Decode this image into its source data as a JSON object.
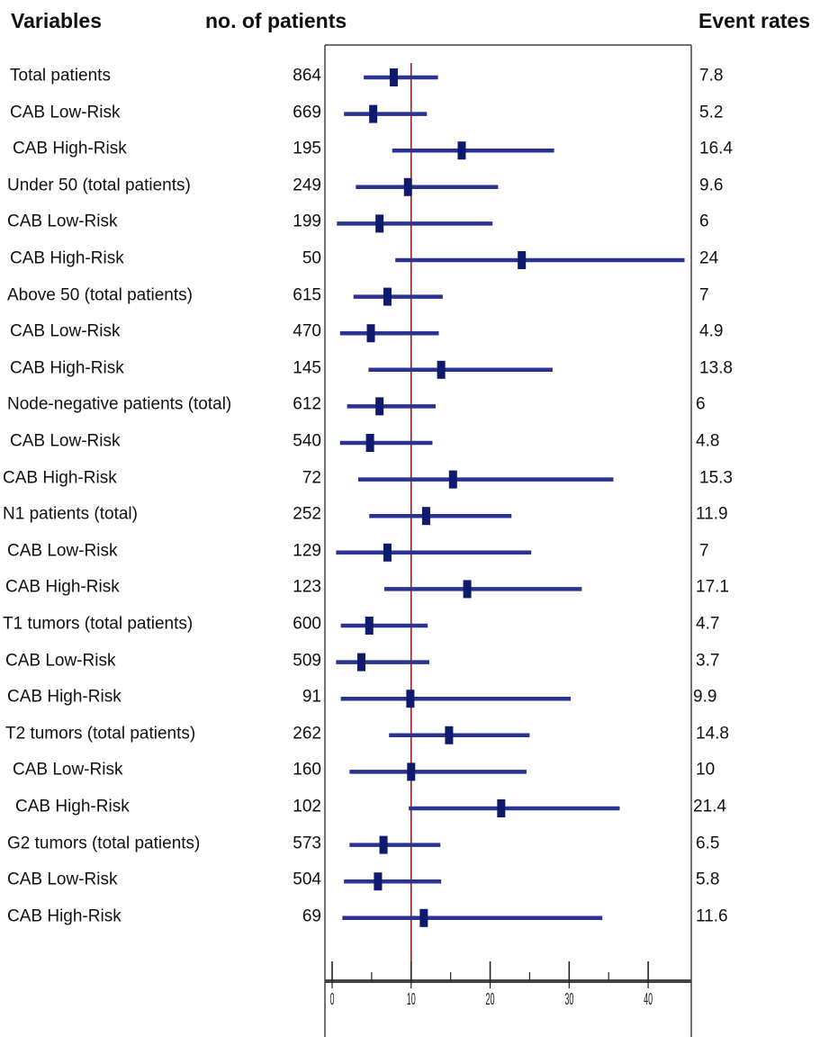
{
  "headers": {
    "variables": "Variables",
    "patients": "no. of patients",
    "rates": "Event rates"
  },
  "chart_data": {
    "type": "forest",
    "title": "",
    "xlabel": "",
    "ylabel": "",
    "reference_line": 10,
    "xlim": [
      0,
      45
    ],
    "x_ticks": [
      0,
      10,
      20,
      30,
      40
    ],
    "minor_ticks": [
      5,
      15,
      25,
      35
    ],
    "colors": {
      "interval": "#2a3392",
      "marker": "#0d1a6e",
      "reference": "#8b1a1a",
      "axis": "#444444"
    },
    "rows": [
      {
        "label": "Total patients",
        "n": "864",
        "rate_text": "7.8",
        "estimate": 7.8,
        "lower": 4.0,
        "upper": 13.4
      },
      {
        "label": "CAB Low-Risk",
        "n": "669",
        "rate_text": "5.2",
        "estimate": 5.2,
        "lower": 1.5,
        "upper": 12.0
      },
      {
        "label": "CAB High-Risk",
        "n": "195",
        "rate_text": "16.4",
        "estimate": 16.4,
        "lower": 7.6,
        "upper": 28.1
      },
      {
        "label": "Under 50 (total patients)",
        "n": "249",
        "rate_text": "9.6",
        "estimate": 9.6,
        "lower": 3.0,
        "upper": 21.0
      },
      {
        "label": "CAB Low-Risk",
        "n": "199",
        "rate_text": "6",
        "estimate": 6.0,
        "lower": 0.6,
        "upper": 20.3
      },
      {
        "label": "CAB High-Risk",
        "n": "50",
        "rate_text": "24",
        "estimate": 24.0,
        "lower": 8.0,
        "upper": 44.6
      },
      {
        "label": "Above 50 (total patients)",
        "n": "615",
        "rate_text": "7",
        "estimate": 7.0,
        "lower": 2.7,
        "upper": 14.0
      },
      {
        "label": "CAB Low-Risk",
        "n": "470",
        "rate_text": "4.9",
        "estimate": 4.9,
        "lower": 1.0,
        "upper": 13.5
      },
      {
        "label": "CAB High-Risk",
        "n": "145",
        "rate_text": "13.8",
        "estimate": 13.8,
        "lower": 4.6,
        "upper": 27.9
      },
      {
        "label": "Node-negative patients (total)",
        "n": "612",
        "rate_text": "6",
        "estimate": 6.0,
        "lower": 1.9,
        "upper": 13.1
      },
      {
        "label": "CAB Low-Risk",
        "n": "540",
        "rate_text": "4.8",
        "estimate": 4.8,
        "lower": 1.0,
        "upper": 12.7
      },
      {
        "label": "CAB High-Risk",
        "n": "72",
        "rate_text": "15.3",
        "estimate": 15.3,
        "lower": 3.3,
        "upper": 35.6
      },
      {
        "label": "N1 patients (total)",
        "n": "252",
        "rate_text": "11.9",
        "estimate": 11.9,
        "lower": 4.7,
        "upper": 22.7
      },
      {
        "label": "CAB Low-Risk",
        "n": "129",
        "rate_text": "7",
        "estimate": 7.0,
        "lower": 0.5,
        "upper": 25.2
      },
      {
        "label": "CAB High-Risk",
        "n": "123",
        "rate_text": "17.1",
        "estimate": 17.1,
        "lower": 6.6,
        "upper": 31.6
      },
      {
        "label": "T1 tumors (total patients)",
        "n": "600",
        "rate_text": "4.7",
        "estimate": 4.7,
        "lower": 1.1,
        "upper": 12.1
      },
      {
        "label": "CAB Low-Risk",
        "n": "509",
        "rate_text": "3.7",
        "estimate": 3.7,
        "lower": 0.5,
        "upper": 12.3
      },
      {
        "label": "CAB High-Risk",
        "n": "91",
        "rate_text": "9.9",
        "estimate": 9.9,
        "lower": 1.1,
        "upper": 30.2
      },
      {
        "label": "T2 tumors (total patients)",
        "n": "262",
        "rate_text": "14.8",
        "estimate": 14.8,
        "lower": 7.2,
        "upper": 25.0
      },
      {
        "label": "CAB Low-Risk",
        "n": "160",
        "rate_text": "10",
        "estimate": 10.0,
        "lower": 2.2,
        "upper": 24.6
      },
      {
        "label": "CAB High-Risk",
        "n": "102",
        "rate_text": "21.4",
        "estimate": 21.4,
        "lower": 9.7,
        "upper": 36.4
      },
      {
        "label": "G2 tumors (total patients)",
        "n": "573",
        "rate_text": "6.5",
        "estimate": 6.5,
        "lower": 2.2,
        "upper": 13.7
      },
      {
        "label": "CAB Low-Risk",
        "n": "504",
        "rate_text": "5.8",
        "estimate": 5.8,
        "lower": 1.5,
        "upper": 13.8
      },
      {
        "label": "CAB High-Risk",
        "n": "69",
        "rate_text": "11.6",
        "estimate": 11.6,
        "lower": 1.3,
        "upper": 34.2
      }
    ]
  }
}
